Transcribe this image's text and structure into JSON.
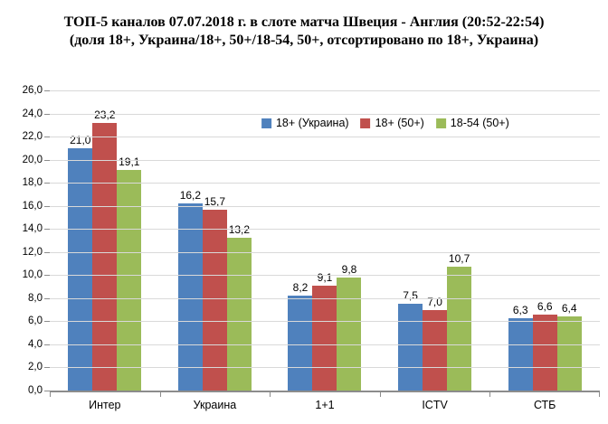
{
  "title": {
    "line1": "ТОП-5 каналов 07.07.2018 г. в слоте матча Швеция - Англия (20:52-22:54)",
    "line2": "(доля 18+, Украина/18+, 50+/18-54, 50+, отсортировано по 18+, Украина)"
  },
  "chart_data": {
    "type": "bar",
    "categories": [
      "Интер",
      "Украина",
      "1+1",
      "ICTV",
      "СТБ"
    ],
    "series": [
      {
        "name": "18+ (Украина)",
        "color": "#4F81BD",
        "values": [
          21.0,
          16.2,
          8.2,
          7.5,
          6.3
        ],
        "labels": [
          "21,0",
          "16,2",
          "8,2",
          "7,5",
          "6,3"
        ]
      },
      {
        "name": "18+ (50+)",
        "color": "#C0504D",
        "values": [
          23.2,
          15.7,
          9.1,
          7.0,
          6.6
        ],
        "labels": [
          "23,2",
          "15,7",
          "9,1",
          "7,0",
          "6,6"
        ]
      },
      {
        "name": "18-54 (50+)",
        "color": "#9BBB59",
        "values": [
          19.1,
          13.2,
          9.8,
          10.7,
          6.4
        ],
        "labels": [
          "19,1",
          "13,2",
          "9,8",
          "10,7",
          "6,4"
        ]
      }
    ],
    "ylim": [
      0,
      26
    ],
    "ytick_step": 2,
    "ytick_labels": [
      "0,0",
      "2,0",
      "4,0",
      "6,0",
      "8,0",
      "10,0",
      "12,0",
      "14,0",
      "16,0",
      "18,0",
      "20,0",
      "22,0",
      "24,0",
      "26,0"
    ],
    "grid": true,
    "legend_position": "top-inside",
    "style": {
      "gridline_color": "#d9d9d9",
      "axis_color": "#8c8c8c",
      "text_color": "#000000"
    }
  }
}
